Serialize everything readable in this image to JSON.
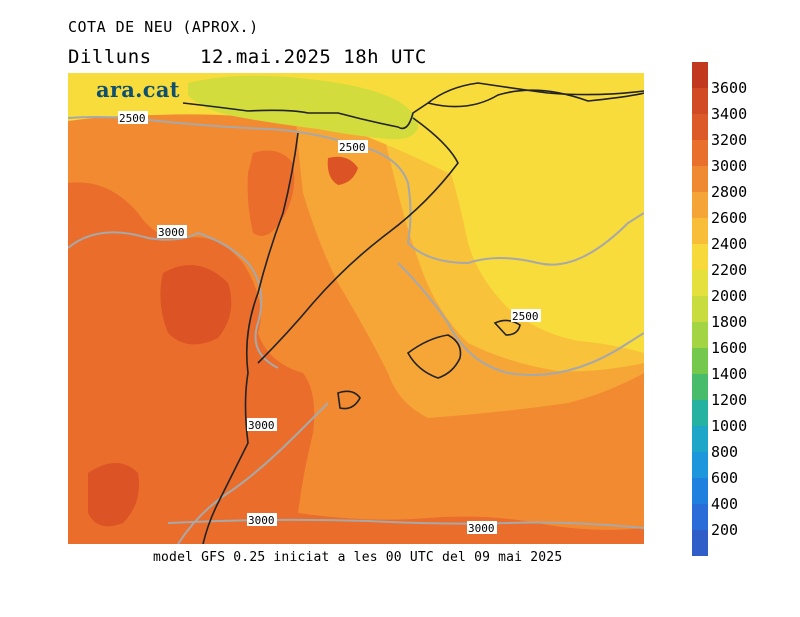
{
  "header": {
    "title": "COTA DE NEU (APROX.)",
    "day": "Dilluns",
    "datetime": "12.mai.2025 18h UTC"
  },
  "brand": {
    "logo_text": "ara.cat"
  },
  "footer": {
    "model_info": "model GFS 0.25 iniciat a les 00 UTC del 09 mai 2025"
  },
  "map": {
    "colors": {
      "band_2000": "#d2dc3c",
      "band_2200": "#f7dc3b",
      "band_2400": "#f8c23a",
      "band_2600": "#f6a637",
      "band_2800": "#f28a32",
      "band_3000": "#ea6d2b",
      "band_3200": "#dc5325",
      "contour": "#a8a8a8",
      "coastline": "#222222"
    },
    "contour_labels": [
      {
        "text": "2500"
      },
      {
        "text": "2500"
      },
      {
        "text": "3000"
      },
      {
        "text": "2500"
      },
      {
        "text": "3000"
      },
      {
        "text": "3000"
      },
      {
        "text": "3000"
      }
    ]
  },
  "legend": {
    "entries": [
      {
        "label": "3600",
        "color": "#c0381e"
      },
      {
        "label": "3400",
        "color": "#d04a23"
      },
      {
        "label": "3200",
        "color": "#dc5a27"
      },
      {
        "label": "3000",
        "color": "#e8702c"
      },
      {
        "label": "2800",
        "color": "#f08a32"
      },
      {
        "label": "2600",
        "color": "#f5a437"
      },
      {
        "label": "2400",
        "color": "#f8be3a"
      },
      {
        "label": "2200",
        "color": "#f7d93c"
      },
      {
        "label": "2000",
        "color": "#e4e03e"
      },
      {
        "label": "1800",
        "color": "#c8dc40"
      },
      {
        "label": "1600",
        "color": "#a2d444"
      },
      {
        "label": "1400",
        "color": "#74c84c"
      },
      {
        "label": "1200",
        "color": "#48bc6a"
      },
      {
        "label": "1000",
        "color": "#26b2a0"
      },
      {
        "label": "800",
        "color": "#1ea6c8"
      },
      {
        "label": "600",
        "color": "#1e96dc"
      },
      {
        "label": "400",
        "color": "#2080e0"
      },
      {
        "label": "200",
        "color": "#2a6cd8"
      },
      {
        "label": "",
        "color": "#2f5ec8"
      }
    ]
  }
}
